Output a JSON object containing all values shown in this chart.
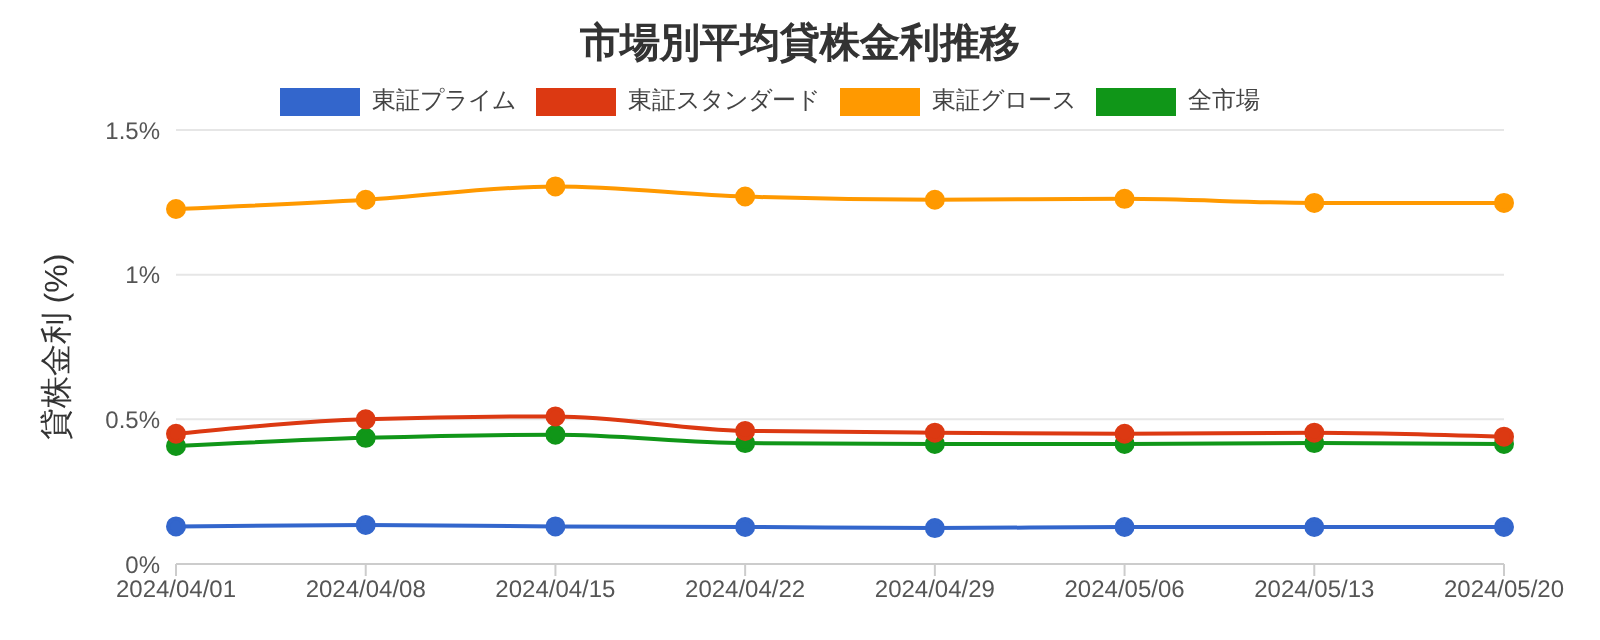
{
  "chart_data": {
    "type": "line",
    "title": "市場別平均貸株金利推移",
    "ylabel": "貸株金利 (%)",
    "categories": [
      "2024/04/01",
      "2024/04/08",
      "2024/04/15",
      "2024/04/22",
      "2024/04/29",
      "2024/05/06",
      "2024/05/13",
      "2024/05/20"
    ],
    "series": [
      {
        "name": "東証プライム",
        "color": "#3366cc",
        "values": [
          0.13,
          0.135,
          0.13,
          0.128,
          0.124,
          0.128,
          0.128,
          0.128
        ]
      },
      {
        "name": "東証スタンダード",
        "color": "#dc3912",
        "values": [
          0.45,
          0.5,
          0.51,
          0.46,
          0.454,
          0.45,
          0.454,
          0.44
        ]
      },
      {
        "name": "東証グロース",
        "color": "#ff9900",
        "values": [
          1.227,
          1.259,
          1.305,
          1.27,
          1.259,
          1.262,
          1.248,
          1.248
        ]
      },
      {
        "name": "全市場",
        "color": "#109618",
        "values": [
          0.408,
          0.436,
          0.447,
          0.418,
          0.415,
          0.415,
          0.418,
          0.415
        ]
      }
    ],
    "ylim": [
      0,
      1.5
    ],
    "yticks": [
      {
        "value": 0,
        "label": "0%"
      },
      {
        "value": 0.5,
        "label": "0.5%"
      },
      {
        "value": 1,
        "label": "1%"
      },
      {
        "value": 1.5,
        "label": "1.5%"
      }
    ],
    "grid": "y",
    "legend": "top",
    "marker": "circle",
    "line_style": "solid"
  }
}
